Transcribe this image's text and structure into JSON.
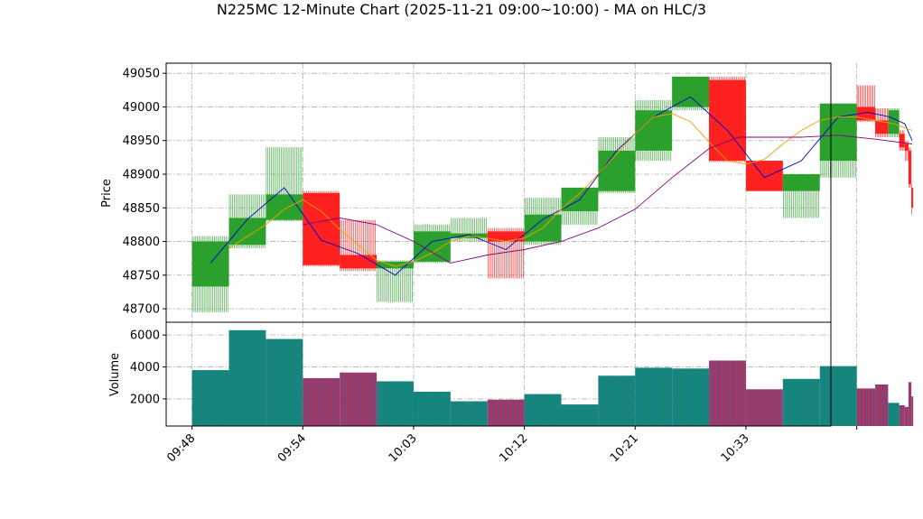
{
  "chart_data": {
    "type": "candlestick",
    "title": "N225MC 12-Minute Chart (2025-11-21 09:00~10:00) - MA on HLC/3",
    "price_panel": {
      "ylabel": "Price",
      "ylim": [
        48680,
        49065
      ],
      "yticks": [
        48700,
        48750,
        48800,
        48850,
        48900,
        48950,
        49000,
        49050
      ],
      "grid": true
    },
    "volume_panel": {
      "ylabel": "Volume",
      "ylim": [
        300,
        6800
      ],
      "yticks": [
        2000,
        4000,
        6000
      ],
      "grid": true
    },
    "xlim": [
      -0.7,
      17.3
    ],
    "x_ticks": [
      {
        "pos": 0,
        "label": "09:48"
      },
      {
        "pos": 3,
        "label": "09:54"
      },
      {
        "pos": 6,
        "label": "10:03"
      },
      {
        "pos": 9,
        "label": "10:12"
      },
      {
        "pos": 12,
        "label": "10:21"
      },
      {
        "pos": 15,
        "label": "10:33"
      },
      {
        "pos": 18,
        "label": ""
      }
    ],
    "colors": {
      "up": "#2ca02c",
      "down": "#ff2020",
      "vol_up": "#138a70",
      "vol_down": "#a8355e",
      "vol_stripe": "#2b6cc4",
      "ma_short": "#0000cc",
      "ma_mid": "#f0a000",
      "ma_long": "#800080"
    },
    "candles": [
      {
        "x": 0.0,
        "w": 1.0,
        "o": 48733,
        "h": 48808,
        "l": 48695,
        "c": 48800,
        "v": 3800
      },
      {
        "x": 1.0,
        "w": 1.0,
        "o": 48795,
        "h": 48870,
        "l": 48790,
        "c": 48835,
        "v": 6300
      },
      {
        "x": 2.0,
        "w": 1.0,
        "o": 48832,
        "h": 48940,
        "l": 48830,
        "c": 48870,
        "v": 5750
      },
      {
        "x": 3.0,
        "w": 1.0,
        "o": 48872,
        "h": 48875,
        "l": 48763,
        "c": 48765,
        "v": 3300
      },
      {
        "x": 4.0,
        "w": 1.0,
        "o": 48780,
        "h": 48832,
        "l": 48756,
        "c": 48760,
        "v": 3650
      },
      {
        "x": 5.0,
        "w": 1.0,
        "o": 48760,
        "h": 48772,
        "l": 48710,
        "c": 48770,
        "v": 3100
      },
      {
        "x": 6.0,
        "w": 1.0,
        "o": 48770,
        "h": 48825,
        "l": 48768,
        "c": 48815,
        "v": 2450
      },
      {
        "x": 7.0,
        "w": 1.0,
        "o": 48805,
        "h": 48835,
        "l": 48800,
        "c": 48812,
        "v": 1850
      },
      {
        "x": 8.0,
        "w": 1.0,
        "o": 48815,
        "h": 48820,
        "l": 48745,
        "c": 48800,
        "v": 1950
      },
      {
        "x": 9.0,
        "w": 1.0,
        "o": 48800,
        "h": 48865,
        "l": 48795,
        "c": 48840,
        "v": 2300
      },
      {
        "x": 10.0,
        "w": 1.0,
        "o": 48845,
        "h": 48880,
        "l": 48825,
        "c": 48880,
        "v": 1650
      },
      {
        "x": 11.0,
        "w": 1.0,
        "o": 48875,
        "h": 48955,
        "l": 48872,
        "c": 48935,
        "v": 3450
      },
      {
        "x": 12.0,
        "w": 1.0,
        "o": 48935,
        "h": 49010,
        "l": 48920,
        "c": 48995,
        "v": 3950
      },
      {
        "x": 13.0,
        "w": 1.0,
        "o": 49000,
        "h": 49045,
        "l": 48995,
        "c": 49045,
        "v": 3900
      },
      {
        "x": 14.0,
        "w": 1.0,
        "o": 49040,
        "h": 49045,
        "l": 48918,
        "c": 48920,
        "v": 4400
      },
      {
        "x": 15.0,
        "w": 1.0,
        "o": 48920,
        "h": 48920,
        "l": 48875,
        "c": 48875,
        "v": 2600
      },
      {
        "x": 16.0,
        "w": 1.0,
        "o": 48875,
        "h": 48900,
        "l": 48835,
        "c": 48900,
        "v": 3250
      },
      {
        "x": 17.0,
        "w": 1.0,
        "o": 48920,
        "h": 49005,
        "l": 48895,
        "c": 49005,
        "v": 4050
      },
      {
        "x": 18.0,
        "w": 0.5,
        "o": 49000,
        "h": 49032,
        "l": 48978,
        "c": 48980,
        "v": 2650
      },
      {
        "x": 18.5,
        "w": 0.35,
        "o": 48980,
        "h": 48998,
        "l": 48955,
        "c": 48960,
        "v": 2900
      },
      {
        "x": 18.85,
        "w": 0.3,
        "o": 48960,
        "h": 48998,
        "l": 48955,
        "c": 48995,
        "v": 1750
      },
      {
        "x": 19.15,
        "w": 0.15,
        "o": 48960,
        "h": 48965,
        "l": 48935,
        "c": 48940,
        "v": 1600
      },
      {
        "x": 19.3,
        "w": 0.1,
        "o": 48945,
        "h": 48950,
        "l": 48920,
        "c": 48935,
        "v": 1500
      },
      {
        "x": 19.4,
        "w": 0.08,
        "o": 48935,
        "h": 48940,
        "l": 48880,
        "c": 48885,
        "v": 3050
      },
      {
        "x": 19.48,
        "w": 0.05,
        "o": 48880,
        "h": 48885,
        "l": 48840,
        "c": 48850,
        "v": 2150
      }
    ],
    "moving_averages": [
      {
        "key": "ma_short",
        "points": [
          [
            0.5,
            48768
          ],
          [
            1.5,
            48833
          ],
          [
            2.5,
            48880
          ],
          [
            3.5,
            48802
          ],
          [
            4.5,
            48782
          ],
          [
            5.5,
            48750
          ],
          [
            6.5,
            48800
          ],
          [
            7.5,
            48810
          ],
          [
            8.5,
            48788
          ],
          [
            9.5,
            48833
          ],
          [
            10.5,
            48862
          ],
          [
            11.5,
            48935
          ],
          [
            12.5,
            48985
          ],
          [
            13.5,
            49015
          ],
          [
            14.5,
            48965
          ],
          [
            15.5,
            48895
          ],
          [
            16.5,
            48920
          ],
          [
            17.5,
            48985
          ],
          [
            18.3,
            48992
          ],
          [
            18.9,
            48985
          ],
          [
            19.3,
            48975
          ],
          [
            19.5,
            48950
          ]
        ]
      },
      {
        "key": "ma_mid",
        "points": [
          [
            1.0,
            48790
          ],
          [
            2.0,
            48825
          ],
          [
            2.5,
            48848
          ],
          [
            3.0,
            48862
          ],
          [
            3.5,
            48845
          ],
          [
            4.0,
            48818
          ],
          [
            4.5,
            48795
          ],
          [
            5.0,
            48772
          ],
          [
            5.5,
            48763
          ],
          [
            6.0,
            48770
          ],
          [
            6.5,
            48783
          ],
          [
            7.0,
            48800
          ],
          [
            7.5,
            48808
          ],
          [
            8.0,
            48805
          ],
          [
            8.5,
            48800
          ],
          [
            9.0,
            48805
          ],
          [
            9.5,
            48820
          ],
          [
            10.0,
            48848
          ],
          [
            10.5,
            48872
          ],
          [
            11.0,
            48900
          ],
          [
            11.5,
            48930
          ],
          [
            12.0,
            48960
          ],
          [
            12.5,
            48985
          ],
          [
            13.0,
            48990
          ],
          [
            13.5,
            48978
          ],
          [
            14.0,
            48948
          ],
          [
            14.5,
            48920
          ],
          [
            15.0,
            48915
          ],
          [
            15.5,
            48922
          ],
          [
            16.0,
            48945
          ],
          [
            16.5,
            48965
          ],
          [
            17.0,
            48980
          ],
          [
            17.5,
            48985
          ],
          [
            18.0,
            48985
          ],
          [
            18.5,
            48980
          ],
          [
            19.0,
            48975
          ],
          [
            19.5,
            48965
          ]
        ]
      },
      {
        "key": "ma_long",
        "points": [
          [
            3.0,
            48825
          ],
          [
            4.0,
            48835
          ],
          [
            5.0,
            48825
          ],
          [
            6.0,
            48800
          ],
          [
            7.0,
            48768
          ],
          [
            8.0,
            48780
          ],
          [
            9.0,
            48788
          ],
          [
            10.0,
            48800
          ],
          [
            11.0,
            48820
          ],
          [
            12.0,
            48848
          ],
          [
            13.0,
            48895
          ],
          [
            14.0,
            48938
          ],
          [
            14.8,
            48955
          ],
          [
            15.5,
            48955
          ],
          [
            16.5,
            48955
          ],
          [
            17.5,
            48958
          ],
          [
            18.5,
            48952
          ],
          [
            19.5,
            48945
          ]
        ]
      }
    ]
  }
}
